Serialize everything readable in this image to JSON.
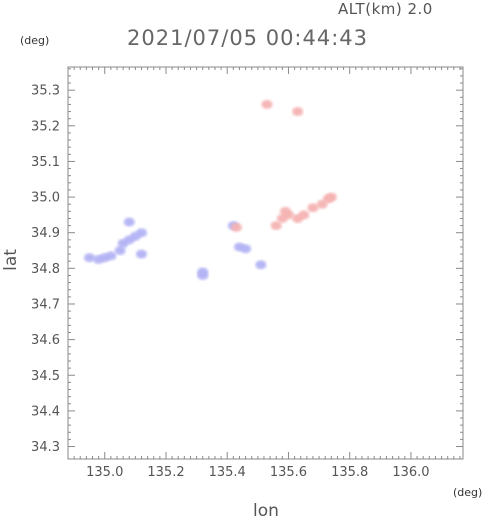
{
  "header": {
    "altitude": "ALT(km) 2.0",
    "timestamp": "2021/07/05 00:44:43"
  },
  "chart_data": {
    "type": "scatter",
    "xlabel": "lon",
    "ylabel": "lat",
    "x_unit": "(deg)",
    "y_unit": "(deg)",
    "xlim": [
      134.88,
      136.17
    ],
    "ylim": [
      34.265,
      35.365
    ],
    "x_ticks": [
      "135.0",
      "135.2",
      "135.4",
      "135.6",
      "135.8",
      "136.0"
    ],
    "y_ticks": [
      "34.3",
      "34.4",
      "34.5",
      "34.6",
      "34.7",
      "34.8",
      "34.9",
      "35.0",
      "35.1",
      "35.2",
      "35.3"
    ],
    "grid": false,
    "series": [
      {
        "color": "#b3b3f5",
        "points": [
          [
            134.95,
            34.83
          ],
          [
            134.98,
            34.825
          ],
          [
            135.0,
            34.83
          ],
          [
            135.02,
            34.835
          ],
          [
            135.05,
            34.85
          ],
          [
            135.06,
            34.87
          ],
          [
            135.08,
            34.88
          ],
          [
            135.08,
            34.93
          ],
          [
            135.1,
            34.89
          ],
          [
            135.12,
            34.9
          ],
          [
            135.12,
            34.84
          ],
          [
            135.32,
            34.79
          ],
          [
            135.32,
            34.78
          ],
          [
            135.44,
            34.86
          ],
          [
            135.46,
            34.855
          ],
          [
            135.42,
            34.92
          ],
          [
            135.51,
            34.81
          ]
        ]
      },
      {
        "color": "#f5b3b3",
        "points": [
          [
            135.43,
            34.915
          ],
          [
            135.56,
            34.92
          ],
          [
            135.58,
            34.94
          ],
          [
            135.6,
            34.95
          ],
          [
            135.63,
            34.94
          ],
          [
            135.65,
            34.95
          ],
          [
            135.68,
            34.97
          ],
          [
            135.71,
            34.98
          ],
          [
            135.73,
            34.995
          ],
          [
            135.74,
            35.0
          ],
          [
            135.59,
            34.96
          ],
          [
            135.53,
            35.26
          ],
          [
            135.63,
            35.24
          ]
        ]
      }
    ]
  }
}
